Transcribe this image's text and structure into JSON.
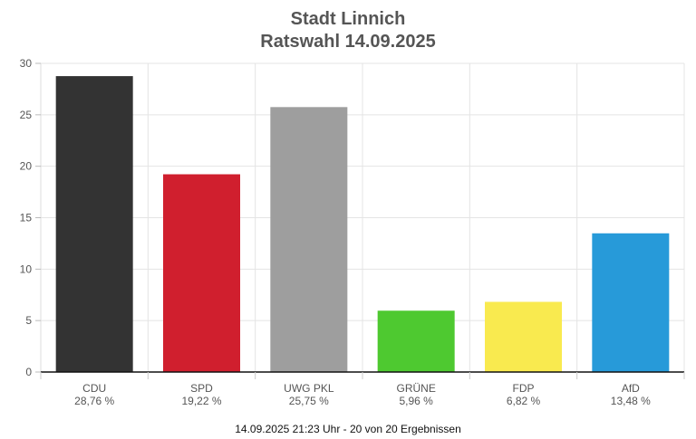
{
  "chart_data": {
    "type": "bar",
    "title": "Stadt Linnich",
    "subtitle": "Ratswahl 14.09.2025",
    "categories": [
      "CDU",
      "SPD",
      "UWG PKL",
      "GRÜNE",
      "FDP",
      "AfD"
    ],
    "value_labels": [
      "28,76 %",
      "19,22 %",
      "25,75 %",
      "5,96 %",
      "6,82 %",
      "13,48 %"
    ],
    "values": [
      28.76,
      19.22,
      25.75,
      5.96,
      6.82,
      13.48
    ],
    "colors": [
      "#333333",
      "#d01f2e",
      "#9e9e9e",
      "#4ec930",
      "#f9ea4f",
      "#279ad9"
    ],
    "ylim": [
      0,
      30
    ],
    "yticks": [
      0,
      5,
      10,
      15,
      20,
      25,
      30
    ],
    "grid": true,
    "legend": "none"
  },
  "footer": "14.09.2025 21:23 Uhr - 20 von 20 Ergebnissen"
}
